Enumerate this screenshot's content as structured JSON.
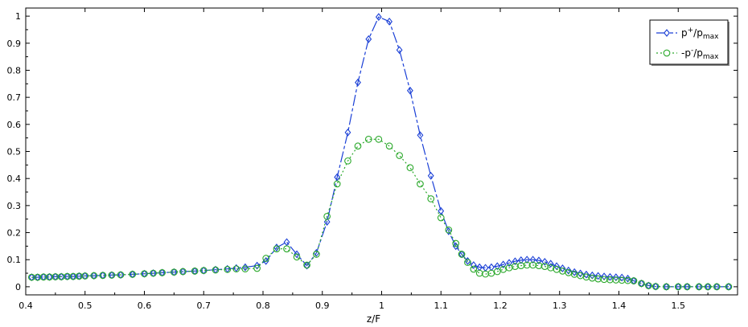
{
  "chart_data": {
    "type": "line",
    "xlabel": "z/F",
    "ylabel": "",
    "xlim": [
      0.4,
      1.6
    ],
    "ylim": [
      -0.03,
      1.03
    ],
    "xticks": [
      "0.4",
      "0.5",
      "0.6",
      "0.7",
      "0.8",
      "0.9",
      "1",
      "1.1",
      "1.2",
      "1.3",
      "1.4",
      "1.5"
    ],
    "yticks": [
      "0",
      "0.1",
      "0.2",
      "0.3",
      "0.4",
      "0.5",
      "0.6",
      "0.7",
      "0.8",
      "0.9",
      "1"
    ],
    "grid": false,
    "legend_position": "top-right",
    "legend": [
      {
        "base": "p",
        "sup": "+",
        "mid": "/p",
        "sub": "max"
      },
      {
        "base": "-p",
        "sup": "-",
        "mid": "/p",
        "sub": "max"
      }
    ],
    "series": [
      {
        "color": "#1a3fd6",
        "marker": "diamond",
        "dash": "14,3,4,3",
        "x": [
          0.41,
          0.42,
          0.43,
          0.44,
          0.45,
          0.46,
          0.47,
          0.48,
          0.49,
          0.5,
          0.515,
          0.53,
          0.545,
          0.56,
          0.58,
          0.6,
          0.615,
          0.63,
          0.65,
          0.665,
          0.685,
          0.7,
          0.72,
          0.74,
          0.755,
          0.77,
          0.79,
          0.805,
          0.823,
          0.84,
          0.857,
          0.874,
          0.89,
          0.908,
          0.925,
          0.943,
          0.96,
          0.978,
          0.995,
          1.013,
          1.03,
          1.048,
          1.065,
          1.083,
          1.1,
          1.113,
          1.125,
          1.135,
          1.145,
          1.155,
          1.165,
          1.175,
          1.185,
          1.195,
          1.205,
          1.215,
          1.225,
          1.235,
          1.245,
          1.255,
          1.265,
          1.275,
          1.285,
          1.295,
          1.305,
          1.315,
          1.325,
          1.335,
          1.345,
          1.355,
          1.365,
          1.375,
          1.385,
          1.395,
          1.405,
          1.415,
          1.425,
          1.438,
          1.45,
          1.462,
          1.48,
          1.5,
          1.515,
          1.535,
          1.55,
          1.565,
          1.585
        ],
        "y": [
          0.035,
          0.035,
          0.036,
          0.036,
          0.037,
          0.037,
          0.038,
          0.038,
          0.039,
          0.04,
          0.041,
          0.042,
          0.043,
          0.044,
          0.046,
          0.048,
          0.05,
          0.052,
          0.054,
          0.056,
          0.058,
          0.06,
          0.063,
          0.066,
          0.069,
          0.072,
          0.078,
          0.095,
          0.145,
          0.165,
          0.12,
          0.078,
          0.125,
          0.24,
          0.405,
          0.57,
          0.755,
          0.915,
          0.997,
          0.98,
          0.875,
          0.725,
          0.56,
          0.41,
          0.28,
          0.205,
          0.15,
          0.12,
          0.095,
          0.08,
          0.072,
          0.07,
          0.072,
          0.076,
          0.082,
          0.088,
          0.094,
          0.098,
          0.1,
          0.1,
          0.097,
          0.092,
          0.085,
          0.076,
          0.068,
          0.06,
          0.054,
          0.049,
          0.045,
          0.042,
          0.04,
          0.038,
          0.036,
          0.035,
          0.034,
          0.03,
          0.022,
          0.012,
          0.004,
          0.001,
          0.0,
          0.0,
          0.0,
          0.0,
          0.0,
          0.0,
          0.0
        ]
      },
      {
        "color": "#2aa82a",
        "marker": "circle",
        "dash": "2,3",
        "x": [
          0.41,
          0.42,
          0.43,
          0.44,
          0.45,
          0.46,
          0.47,
          0.48,
          0.49,
          0.5,
          0.515,
          0.53,
          0.545,
          0.56,
          0.58,
          0.6,
          0.615,
          0.63,
          0.65,
          0.665,
          0.685,
          0.7,
          0.72,
          0.74,
          0.755,
          0.77,
          0.79,
          0.805,
          0.823,
          0.84,
          0.857,
          0.874,
          0.89,
          0.908,
          0.925,
          0.943,
          0.96,
          0.978,
          0.995,
          1.013,
          1.03,
          1.048,
          1.065,
          1.083,
          1.1,
          1.113,
          1.125,
          1.135,
          1.145,
          1.155,
          1.165,
          1.175,
          1.185,
          1.195,
          1.205,
          1.215,
          1.225,
          1.235,
          1.245,
          1.255,
          1.265,
          1.275,
          1.285,
          1.295,
          1.305,
          1.315,
          1.325,
          1.335,
          1.345,
          1.355,
          1.365,
          1.375,
          1.385,
          1.395,
          1.405,
          1.415,
          1.425,
          1.438,
          1.45,
          1.462,
          1.48,
          1.5,
          1.515,
          1.535,
          1.55,
          1.565,
          1.585
        ],
        "y": [
          0.035,
          0.035,
          0.036,
          0.036,
          0.037,
          0.037,
          0.038,
          0.038,
          0.039,
          0.04,
          0.041,
          0.042,
          0.043,
          0.044,
          0.046,
          0.048,
          0.05,
          0.052,
          0.054,
          0.056,
          0.058,
          0.06,
          0.062,
          0.064,
          0.066,
          0.066,
          0.068,
          0.105,
          0.14,
          0.14,
          0.11,
          0.08,
          0.12,
          0.26,
          0.38,
          0.465,
          0.52,
          0.545,
          0.545,
          0.52,
          0.485,
          0.44,
          0.38,
          0.325,
          0.255,
          0.21,
          0.16,
          0.12,
          0.09,
          0.065,
          0.05,
          0.047,
          0.05,
          0.056,
          0.064,
          0.07,
          0.075,
          0.078,
          0.08,
          0.08,
          0.078,
          0.075,
          0.07,
          0.064,
          0.058,
          0.052,
          0.046,
          0.041,
          0.036,
          0.032,
          0.029,
          0.027,
          0.026,
          0.025,
          0.024,
          0.023,
          0.022,
          0.012,
          0.004,
          0.001,
          0.0,
          0.0,
          0.0,
          0.0,
          0.0,
          0.0,
          0.0
        ]
      }
    ]
  }
}
